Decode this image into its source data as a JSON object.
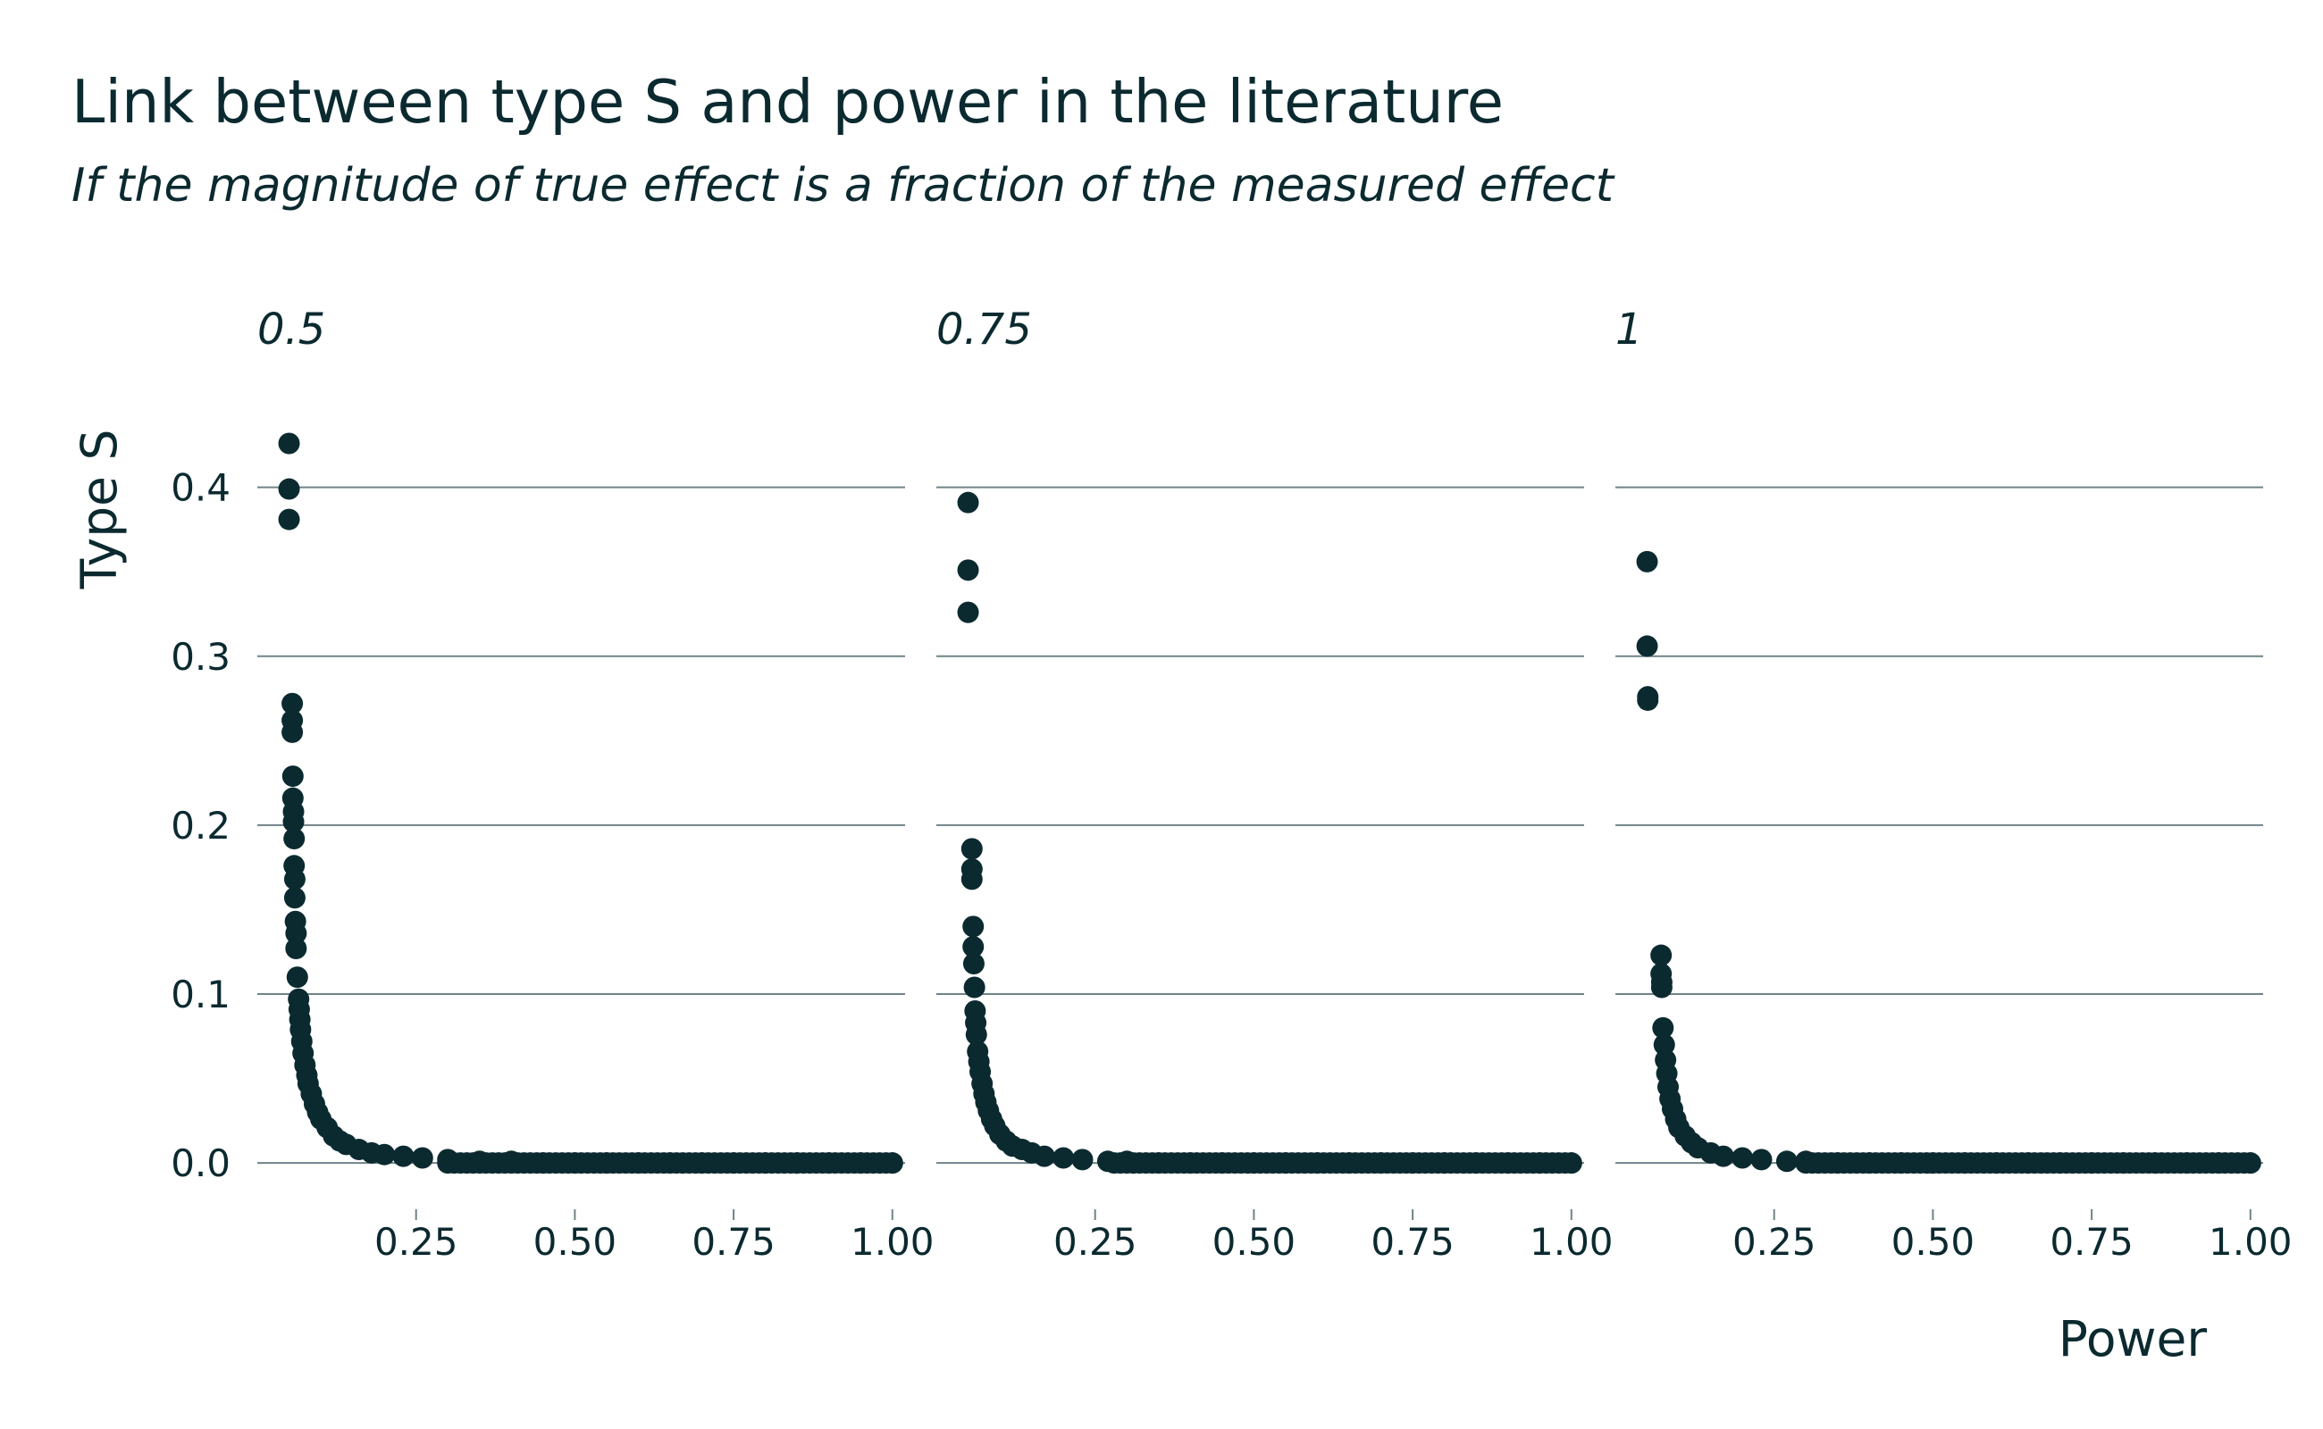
{
  "chart_data": {
    "type": "scatter",
    "title": "Link between type S and power in the literature",
    "subtitle": "If the magnitude of true effect is a fraction of the measured effect",
    "xlabel": "Power",
    "ylabel": "Type S",
    "xlim": [
      0.0,
      1.02
    ],
    "ylim": [
      -0.02,
      0.44
    ],
    "x_ticks": [
      0.25,
      0.5,
      0.75,
      1.0
    ],
    "x_tick_labels": [
      "0.25",
      "0.50",
      "0.75",
      "1.00"
    ],
    "y_ticks": [
      0.0,
      0.1,
      0.2,
      0.3,
      0.4
    ],
    "y_tick_labels": [
      "0.0",
      "0.1",
      "0.2",
      "0.3",
      "0.4"
    ],
    "grid": "horizontal",
    "point_color": "#0b2a30",
    "facets": [
      {
        "label": "0.5",
        "points": [
          [
            0.05,
            0.426
          ],
          [
            0.05,
            0.399
          ],
          [
            0.05,
            0.381
          ],
          [
            0.055,
            0.272
          ],
          [
            0.055,
            0.262
          ],
          [
            0.055,
            0.255
          ],
          [
            0.056,
            0.229
          ],
          [
            0.056,
            0.216
          ],
          [
            0.057,
            0.208
          ],
          [
            0.057,
            0.202
          ],
          [
            0.058,
            0.192
          ],
          [
            0.058,
            0.176
          ],
          [
            0.059,
            0.168
          ],
          [
            0.059,
            0.157
          ],
          [
            0.06,
            0.143
          ],
          [
            0.061,
            0.136
          ],
          [
            0.061,
            0.127
          ],
          [
            0.063,
            0.11
          ],
          [
            0.065,
            0.097
          ],
          [
            0.066,
            0.091
          ],
          [
            0.067,
            0.085
          ],
          [
            0.068,
            0.079
          ],
          [
            0.07,
            0.072
          ],
          [
            0.072,
            0.065
          ],
          [
            0.075,
            0.058
          ],
          [
            0.078,
            0.052
          ],
          [
            0.08,
            0.047
          ],
          [
            0.085,
            0.041
          ],
          [
            0.09,
            0.035
          ],
          [
            0.095,
            0.03
          ],
          [
            0.1,
            0.026
          ],
          [
            0.11,
            0.021
          ],
          [
            0.12,
            0.016
          ],
          [
            0.13,
            0.013
          ],
          [
            0.14,
            0.011
          ],
          [
            0.16,
            0.008
          ],
          [
            0.18,
            0.006
          ],
          [
            0.2,
            0.005
          ],
          [
            0.23,
            0.004
          ],
          [
            0.26,
            0.003
          ],
          [
            0.3,
            0.002
          ],
          [
            0.35,
            0.001
          ],
          [
            0.4,
            0.001
          ],
          [
            0.45,
            0.0
          ],
          [
            0.5,
            0.0
          ],
          [
            0.55,
            0.0
          ],
          [
            0.6,
            0.0
          ],
          [
            0.65,
            0.0
          ],
          [
            0.7,
            0.0
          ],
          [
            0.75,
            0.0
          ],
          [
            0.8,
            0.0
          ],
          [
            0.85,
            0.0
          ],
          [
            0.9,
            0.0
          ],
          [
            0.95,
            0.0
          ],
          [
            1.0,
            0.0
          ]
        ]
      },
      {
        "label": "0.75",
        "points": [
          [
            0.05,
            0.391
          ],
          [
            0.05,
            0.351
          ],
          [
            0.05,
            0.326
          ],
          [
            0.056,
            0.186
          ],
          [
            0.056,
            0.174
          ],
          [
            0.056,
            0.168
          ],
          [
            0.058,
            0.14
          ],
          [
            0.058,
            0.128
          ],
          [
            0.059,
            0.118
          ],
          [
            0.06,
            0.104
          ],
          [
            0.061,
            0.09
          ],
          [
            0.062,
            0.083
          ],
          [
            0.063,
            0.076
          ],
          [
            0.065,
            0.066
          ],
          [
            0.067,
            0.06
          ],
          [
            0.069,
            0.054
          ],
          [
            0.072,
            0.047
          ],
          [
            0.075,
            0.041
          ],
          [
            0.078,
            0.036
          ],
          [
            0.082,
            0.031
          ],
          [
            0.087,
            0.026
          ],
          [
            0.092,
            0.022
          ],
          [
            0.1,
            0.017
          ],
          [
            0.11,
            0.013
          ],
          [
            0.12,
            0.01
          ],
          [
            0.135,
            0.008
          ],
          [
            0.15,
            0.006
          ],
          [
            0.17,
            0.004
          ],
          [
            0.2,
            0.003
          ],
          [
            0.23,
            0.002
          ],
          [
            0.27,
            0.001
          ],
          [
            0.3,
            0.001
          ],
          [
            0.35,
            0.0
          ],
          [
            0.4,
            0.0
          ],
          [
            0.45,
            0.0
          ],
          [
            0.5,
            0.0
          ],
          [
            0.55,
            0.0
          ],
          [
            0.6,
            0.0
          ],
          [
            0.65,
            0.0
          ],
          [
            0.7,
            0.0
          ],
          [
            0.75,
            0.0
          ],
          [
            0.8,
            0.0
          ],
          [
            0.85,
            0.0
          ],
          [
            0.9,
            0.0
          ],
          [
            0.95,
            0.0
          ],
          [
            1.0,
            0.0
          ]
        ]
      },
      {
        "label": "1",
        "points": [
          [
            0.05,
            0.356
          ],
          [
            0.05,
            0.306
          ],
          [
            0.051,
            0.276
          ],
          [
            0.051,
            0.274
          ],
          [
            0.072,
            0.123
          ],
          [
            0.072,
            0.112
          ],
          [
            0.073,
            0.107
          ],
          [
            0.073,
            0.104
          ],
          [
            0.075,
            0.08
          ],
          [
            0.077,
            0.07
          ],
          [
            0.079,
            0.061
          ],
          [
            0.081,
            0.053
          ],
          [
            0.083,
            0.045
          ],
          [
            0.086,
            0.038
          ],
          [
            0.09,
            0.032
          ],
          [
            0.095,
            0.026
          ],
          [
            0.1,
            0.021
          ],
          [
            0.11,
            0.016
          ],
          [
            0.12,
            0.012
          ],
          [
            0.13,
            0.009
          ],
          [
            0.15,
            0.006
          ],
          [
            0.17,
            0.004
          ],
          [
            0.2,
            0.003
          ],
          [
            0.23,
            0.002
          ],
          [
            0.27,
            0.001
          ],
          [
            0.3,
            0.001
          ],
          [
            0.35,
            0.0
          ],
          [
            0.4,
            0.0
          ],
          [
            0.45,
            0.0
          ],
          [
            0.5,
            0.0
          ],
          [
            0.55,
            0.0
          ],
          [
            0.6,
            0.0
          ],
          [
            0.65,
            0.0
          ],
          [
            0.7,
            0.0
          ],
          [
            0.75,
            0.0
          ],
          [
            0.8,
            0.0
          ],
          [
            0.85,
            0.0
          ],
          [
            0.9,
            0.0
          ],
          [
            0.95,
            0.0
          ],
          [
            1.0,
            0.0
          ]
        ]
      }
    ]
  }
}
